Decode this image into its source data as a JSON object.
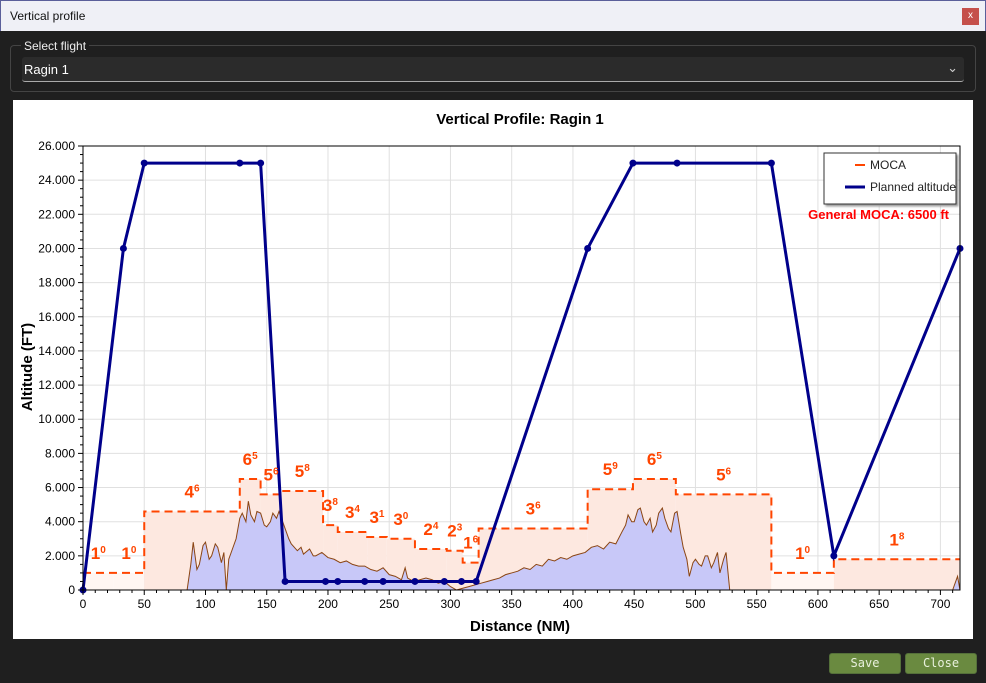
{
  "window": {
    "title": "Vertical profile",
    "close_label": "x"
  },
  "flight_select": {
    "label": "Select flight",
    "value": "Ragin 1",
    "icon": "chevron-down-icon"
  },
  "buttons": {
    "save": "Save",
    "close": "Close"
  },
  "chart_data": {
    "type": "line",
    "title": "Vertical Profile: Ragin 1",
    "xlabel": "Distance (NM)",
    "ylabel": "Altitude (FT)",
    "xlim": [
      0,
      716
    ],
    "ylim": [
      0,
      26000
    ],
    "xticks": [
      0,
      50,
      100,
      150,
      200,
      250,
      300,
      350,
      400,
      450,
      500,
      550,
      600,
      650,
      700
    ],
    "yticks": [
      0,
      2000,
      4000,
      6000,
      8000,
      10000,
      12000,
      14000,
      16000,
      18000,
      20000,
      22000,
      24000,
      26000
    ],
    "ytick_labels": [
      "0",
      "2.000",
      "4.000",
      "6.000",
      "8.000",
      "10.000",
      "12.000",
      "14.000",
      "16.000",
      "18.000",
      "20.000",
      "22.000",
      "24.000",
      "26.000"
    ],
    "grid": true,
    "legend": {
      "placement": "top-right",
      "entries": [
        "MOCA",
        "Planned altitude"
      ]
    },
    "annotation": "General MOCA: 6500 ft",
    "colors": {
      "moca": "#ff4500",
      "moca_fill": "#fde8e0",
      "planned": "#00008b",
      "terrain_line": "#8b4513",
      "terrain_fill": "#c8c8f8",
      "annotation": "#ff0000"
    },
    "planned_altitude": [
      [
        0,
        0
      ],
      [
        33,
        20000
      ],
      [
        50,
        25000
      ],
      [
        128,
        25000
      ],
      [
        145,
        25000
      ],
      [
        165,
        500
      ],
      [
        198,
        500
      ],
      [
        208,
        500
      ],
      [
        230,
        500
      ],
      [
        245,
        500
      ],
      [
        271,
        500
      ],
      [
        295,
        500
      ],
      [
        309,
        500
      ],
      [
        321,
        500
      ],
      [
        412,
        20000
      ],
      [
        449,
        25000
      ],
      [
        485,
        25000
      ],
      [
        562,
        25000
      ],
      [
        613,
        2000
      ],
      [
        716,
        20000
      ]
    ],
    "moca_segments": [
      {
        "from": 0,
        "to": 25,
        "value": 1000,
        "label": "1",
        "sup": "0"
      },
      {
        "from": 25,
        "to": 50,
        "value": 1000,
        "label": "1",
        "sup": "0"
      },
      {
        "from": 50,
        "to": 128,
        "value": 4600,
        "label": "4",
        "sup": "6"
      },
      {
        "from": 128,
        "to": 145,
        "value": 6500,
        "label": "6",
        "sup": "5"
      },
      {
        "from": 145,
        "to": 162,
        "value": 5600,
        "label": "5",
        "sup": "6"
      },
      {
        "from": 162,
        "to": 196,
        "value": 5800,
        "label": "5",
        "sup": "8"
      },
      {
        "from": 196,
        "to": 208,
        "value": 3800,
        "label": "3",
        "sup": "8"
      },
      {
        "from": 208,
        "to": 232,
        "value": 3400,
        "label": "3",
        "sup": "4"
      },
      {
        "from": 232,
        "to": 248,
        "value": 3100,
        "label": "3",
        "sup": "1"
      },
      {
        "from": 248,
        "to": 271,
        "value": 3000,
        "label": "3",
        "sup": "0"
      },
      {
        "from": 271,
        "to": 297,
        "value": 2400,
        "label": "2",
        "sup": "4"
      },
      {
        "from": 297,
        "to": 310,
        "value": 2300,
        "label": "2",
        "sup": "3"
      },
      {
        "from": 310,
        "to": 323,
        "value": 1600,
        "label": "1",
        "sup": "6"
      },
      {
        "from": 323,
        "to": 412,
        "value": 3600,
        "label": "3",
        "sup": "6"
      },
      {
        "from": 412,
        "to": 449,
        "value": 5900,
        "label": "5",
        "sup": "9"
      },
      {
        "from": 449,
        "to": 484,
        "value": 6500,
        "label": "6",
        "sup": "5"
      },
      {
        "from": 484,
        "to": 562,
        "value": 5600,
        "label": "5",
        "sup": "6"
      },
      {
        "from": 562,
        "to": 613,
        "value": 1000,
        "label": "1",
        "sup": "0"
      },
      {
        "from": 613,
        "to": 716,
        "value": 1800,
        "label": "1",
        "sup": "8"
      }
    ],
    "terrain": [
      [
        0,
        0
      ],
      [
        85,
        0
      ],
      [
        88,
        1500
      ],
      [
        90,
        2800
      ],
      [
        93,
        1200
      ],
      [
        95,
        1500
      ],
      [
        98,
        2600
      ],
      [
        100,
        2800
      ],
      [
        103,
        1800
      ],
      [
        105,
        2000
      ],
      [
        108,
        2700
      ],
      [
        110,
        2500
      ],
      [
        113,
        1600
      ],
      [
        115,
        2200
      ],
      [
        117,
        0
      ],
      [
        119,
        1800
      ],
      [
        122,
        2400
      ],
      [
        125,
        3000
      ],
      [
        128,
        4200
      ],
      [
        130,
        4500
      ],
      [
        133,
        4000
      ],
      [
        135,
        5200
      ],
      [
        137,
        4400
      ],
      [
        140,
        4000
      ],
      [
        142,
        4600
      ],
      [
        145,
        4500
      ],
      [
        148,
        3800
      ],
      [
        150,
        3700
      ],
      [
        153,
        4000
      ],
      [
        155,
        4500
      ],
      [
        158,
        4200
      ],
      [
        160,
        4600
      ],
      [
        163,
        4000
      ],
      [
        165,
        3600
      ],
      [
        168,
        3000
      ],
      [
        170,
        2700
      ],
      [
        175,
        2300
      ],
      [
        178,
        2500
      ],
      [
        180,
        2100
      ],
      [
        185,
        2400
      ],
      [
        188,
        2000
      ],
      [
        190,
        2000
      ],
      [
        195,
        2200
      ],
      [
        200,
        1900
      ],
      [
        205,
        1800
      ],
      [
        210,
        1600
      ],
      [
        215,
        1700
      ],
      [
        220,
        1500
      ],
      [
        225,
        1400
      ],
      [
        230,
        1400
      ],
      [
        235,
        1200
      ],
      [
        240,
        1100
      ],
      [
        245,
        1300
      ],
      [
        250,
        900
      ],
      [
        255,
        800
      ],
      [
        260,
        600
      ],
      [
        263,
        1300
      ],
      [
        265,
        700
      ],
      [
        270,
        500
      ],
      [
        275,
        600
      ],
      [
        280,
        700
      ],
      [
        285,
        600
      ],
      [
        290,
        400
      ],
      [
        295,
        500
      ],
      [
        300,
        200
      ],
      [
        305,
        0
      ],
      [
        310,
        100
      ],
      [
        315,
        200
      ],
      [
        320,
        300
      ],
      [
        325,
        400
      ],
      [
        330,
        500
      ],
      [
        335,
        600
      ],
      [
        340,
        700
      ],
      [
        345,
        900
      ],
      [
        350,
        1000
      ],
      [
        355,
        1100
      ],
      [
        360,
        1300
      ],
      [
        365,
        1200
      ],
      [
        370,
        1500
      ],
      [
        375,
        1400
      ],
      [
        380,
        1800
      ],
      [
        385,
        1700
      ],
      [
        390,
        1900
      ],
      [
        395,
        1800
      ],
      [
        400,
        2000
      ],
      [
        405,
        2100
      ],
      [
        410,
        2200
      ],
      [
        415,
        2500
      ],
      [
        420,
        2600
      ],
      [
        425,
        2400
      ],
      [
        430,
        2800
      ],
      [
        435,
        2700
      ],
      [
        440,
        3400
      ],
      [
        443,
        3800
      ],
      [
        445,
        4400
      ],
      [
        448,
        4000
      ],
      [
        450,
        4000
      ],
      [
        453,
        4700
      ],
      [
        455,
        4800
      ],
      [
        458,
        4000
      ],
      [
        460,
        3800
      ],
      [
        463,
        4200
      ],
      [
        465,
        3400
      ],
      [
        468,
        3800
      ],
      [
        470,
        4500
      ],
      [
        473,
        4800
      ],
      [
        475,
        4200
      ],
      [
        478,
        3600
      ],
      [
        480,
        3400
      ],
      [
        483,
        4500
      ],
      [
        485,
        4600
      ],
      [
        488,
        3300
      ],
      [
        490,
        2500
      ],
      [
        493,
        1800
      ],
      [
        495,
        800
      ],
      [
        498,
        1600
      ],
      [
        500,
        1800
      ],
      [
        503,
        1500
      ],
      [
        505,
        1400
      ],
      [
        508,
        2000
      ],
      [
        510,
        2000
      ],
      [
        513,
        1300
      ],
      [
        515,
        1600
      ],
      [
        518,
        2200
      ],
      [
        520,
        1000
      ],
      [
        523,
        1800
      ],
      [
        525,
        2200
      ],
      [
        528,
        0
      ],
      [
        710,
        0
      ],
      [
        714,
        800
      ],
      [
        716,
        0
      ]
    ]
  }
}
